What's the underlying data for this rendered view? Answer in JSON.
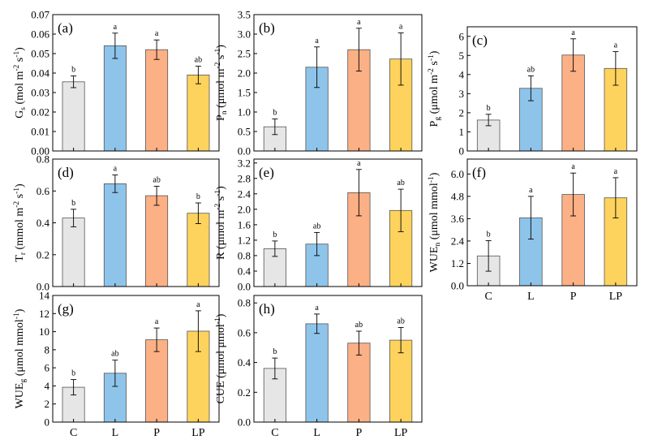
{
  "colors": {
    "C": "#e6e6e6",
    "L": "#8ec4ea",
    "P": "#fbb085",
    "LP": "#fdd35d",
    "edge": "#555555"
  },
  "chart_data": [
    {
      "id": "gs",
      "type": "bar",
      "panel_label": "(a)",
      "ylabel": {
        "main": "G",
        "sub": "s",
        "unit": " (mol m",
        "sup1": "-2",
        "mid": " s",
        "sup2": "-1",
        "end": ")"
      },
      "categories": [
        "C",
        "L",
        "P",
        "LP"
      ],
      "values": [
        0.0355,
        0.054,
        0.052,
        0.039
      ],
      "errors": [
        0.003,
        0.0065,
        0.005,
        0.0045
      ],
      "letters": [
        "b",
        "a",
        "a",
        "ab"
      ],
      "ylim": [
        0,
        0.07
      ],
      "ticks": [
        "0.00",
        "0.01",
        "0.02",
        "0.03",
        "0.04",
        "0.05",
        "0.06",
        "0.07"
      ],
      "show_categories": false
    },
    {
      "id": "pn",
      "type": "bar",
      "panel_label": "(b)",
      "ylabel": {
        "main": "P",
        "sub": "n",
        "unit": " (μmol m",
        "sup1": "-2",
        "mid": " s",
        "sup2": "-1",
        "end": ")"
      },
      "categories": [
        "C",
        "L",
        "P",
        "LP"
      ],
      "values": [
        0.62,
        2.15,
        2.6,
        2.36
      ],
      "errors": [
        0.2,
        0.52,
        0.55,
        0.67
      ],
      "letters": [
        "b",
        "a",
        "a",
        "a"
      ],
      "ylim": [
        0,
        3.5
      ],
      "ticks": [
        "0.0",
        "0.5",
        "1.0",
        "1.5",
        "2.0",
        "2.5",
        "3.0",
        "3.5"
      ],
      "show_categories": false
    },
    {
      "id": "pg",
      "type": "bar",
      "panel_label": "(c)",
      "ylabel": {
        "main": "P",
        "sub": "g",
        "unit": " (μmol m",
        "sup1": "-2",
        "mid": " s",
        "sup2": "-1",
        "end": ")"
      },
      "categories": [
        "C",
        "L",
        "P",
        "LP"
      ],
      "values": [
        1.62,
        3.28,
        5.02,
        4.32
      ],
      "errors": [
        0.3,
        0.65,
        0.85,
        0.88
      ],
      "letters": [
        "b",
        "ab",
        "a",
        "a"
      ],
      "ylim": [
        0,
        6.5
      ],
      "ticks": [
        "0",
        "1",
        "2",
        "3",
        "4",
        "5",
        "6"
      ],
      "show_categories": false
    },
    {
      "id": "tr",
      "type": "bar",
      "panel_label": "(d)",
      "ylabel": {
        "main": "T",
        "sub": "r",
        "unit": " (mmol m",
        "sup1": "-2",
        "mid": " s",
        "sup2": "-1",
        "end": ")"
      },
      "categories": [
        "C",
        "L",
        "P",
        "LP"
      ],
      "values": [
        0.43,
        0.645,
        0.57,
        0.46
      ],
      "errors": [
        0.055,
        0.055,
        0.06,
        0.065
      ],
      "letters": [
        "b",
        "a",
        "ab",
        "b"
      ],
      "ylim": [
        0,
        0.8
      ],
      "ticks": [
        "0.0",
        "0.2",
        "0.4",
        "0.6",
        "0.8"
      ],
      "show_categories": false
    },
    {
      "id": "r",
      "type": "bar",
      "panel_label": "(e)",
      "ylabel": {
        "main": "R",
        "sub": "",
        "unit": " (μmol m",
        "sup1": "-2",
        "mid": " s",
        "sup2": "-1",
        "end": ")"
      },
      "categories": [
        "C",
        "L",
        "P",
        "LP"
      ],
      "values": [
        0.98,
        1.1,
        2.43,
        1.97
      ],
      "errors": [
        0.2,
        0.3,
        0.6,
        0.55
      ],
      "letters": [
        "b",
        "ab",
        "a",
        "ab"
      ],
      "ylim": [
        0,
        3.3
      ],
      "ticks": [
        "0.0",
        "0.4",
        "0.8",
        "1.2",
        "1.6",
        "2.0",
        "2.4",
        "2.8",
        "3.2"
      ],
      "show_categories": false
    },
    {
      "id": "wuen",
      "type": "bar",
      "panel_label": "(f)",
      "ylabel": {
        "main": "WUE",
        "sub": "n",
        "unit": " (μmol mmol",
        "sup1": "-1",
        "mid": "",
        "sup2": "",
        "end": ")"
      },
      "categories": [
        "C",
        "L",
        "P",
        "LP"
      ],
      "values": [
        1.6,
        3.65,
        4.9,
        4.72
      ],
      "errors": [
        0.82,
        1.15,
        1.15,
        1.08
      ],
      "letters": [
        "b",
        "a",
        "a",
        "a"
      ],
      "ylim": [
        0,
        6.8
      ],
      "ticks": [
        "0.0",
        "1.2",
        "2.4",
        "3.6",
        "4.8",
        "6.0"
      ],
      "show_categories": true
    },
    {
      "id": "wueg",
      "type": "bar",
      "panel_label": "(g)",
      "ylabel": {
        "main": "WUE",
        "sub": "g",
        "unit": " (μmol mmol",
        "sup1": "-1",
        "mid": "",
        "sup2": "",
        "end": ")"
      },
      "categories": [
        "C",
        "L",
        "P",
        "LP"
      ],
      "values": [
        3.85,
        5.4,
        9.1,
        10.05
      ],
      "errors": [
        0.85,
        1.45,
        1.3,
        2.25
      ],
      "letters": [
        "b",
        "ab",
        "a",
        "a"
      ],
      "ylim": [
        0,
        14
      ],
      "ticks": [
        "0",
        "2",
        "4",
        "6",
        "8",
        "10",
        "12",
        "14"
      ],
      "show_categories": true
    },
    {
      "id": "cue",
      "type": "bar",
      "panel_label": "(h)",
      "ylabel": {
        "main": "CUE",
        "sub": "",
        "unit": " (μmol μmol",
        "sup1": "-1",
        "mid": "",
        "sup2": "",
        "end": ")"
      },
      "categories": [
        "C",
        "L",
        "P",
        "LP"
      ],
      "values": [
        0.36,
        0.66,
        0.53,
        0.55
      ],
      "errors": [
        0.07,
        0.065,
        0.08,
        0.085
      ],
      "letters": [
        "b",
        "a",
        "ab",
        "ab"
      ],
      "ylim": [
        0,
        0.85
      ],
      "ticks": [
        "0.0",
        "0.2",
        "0.4",
        "0.6",
        "0.8"
      ],
      "show_categories": true
    }
  ]
}
